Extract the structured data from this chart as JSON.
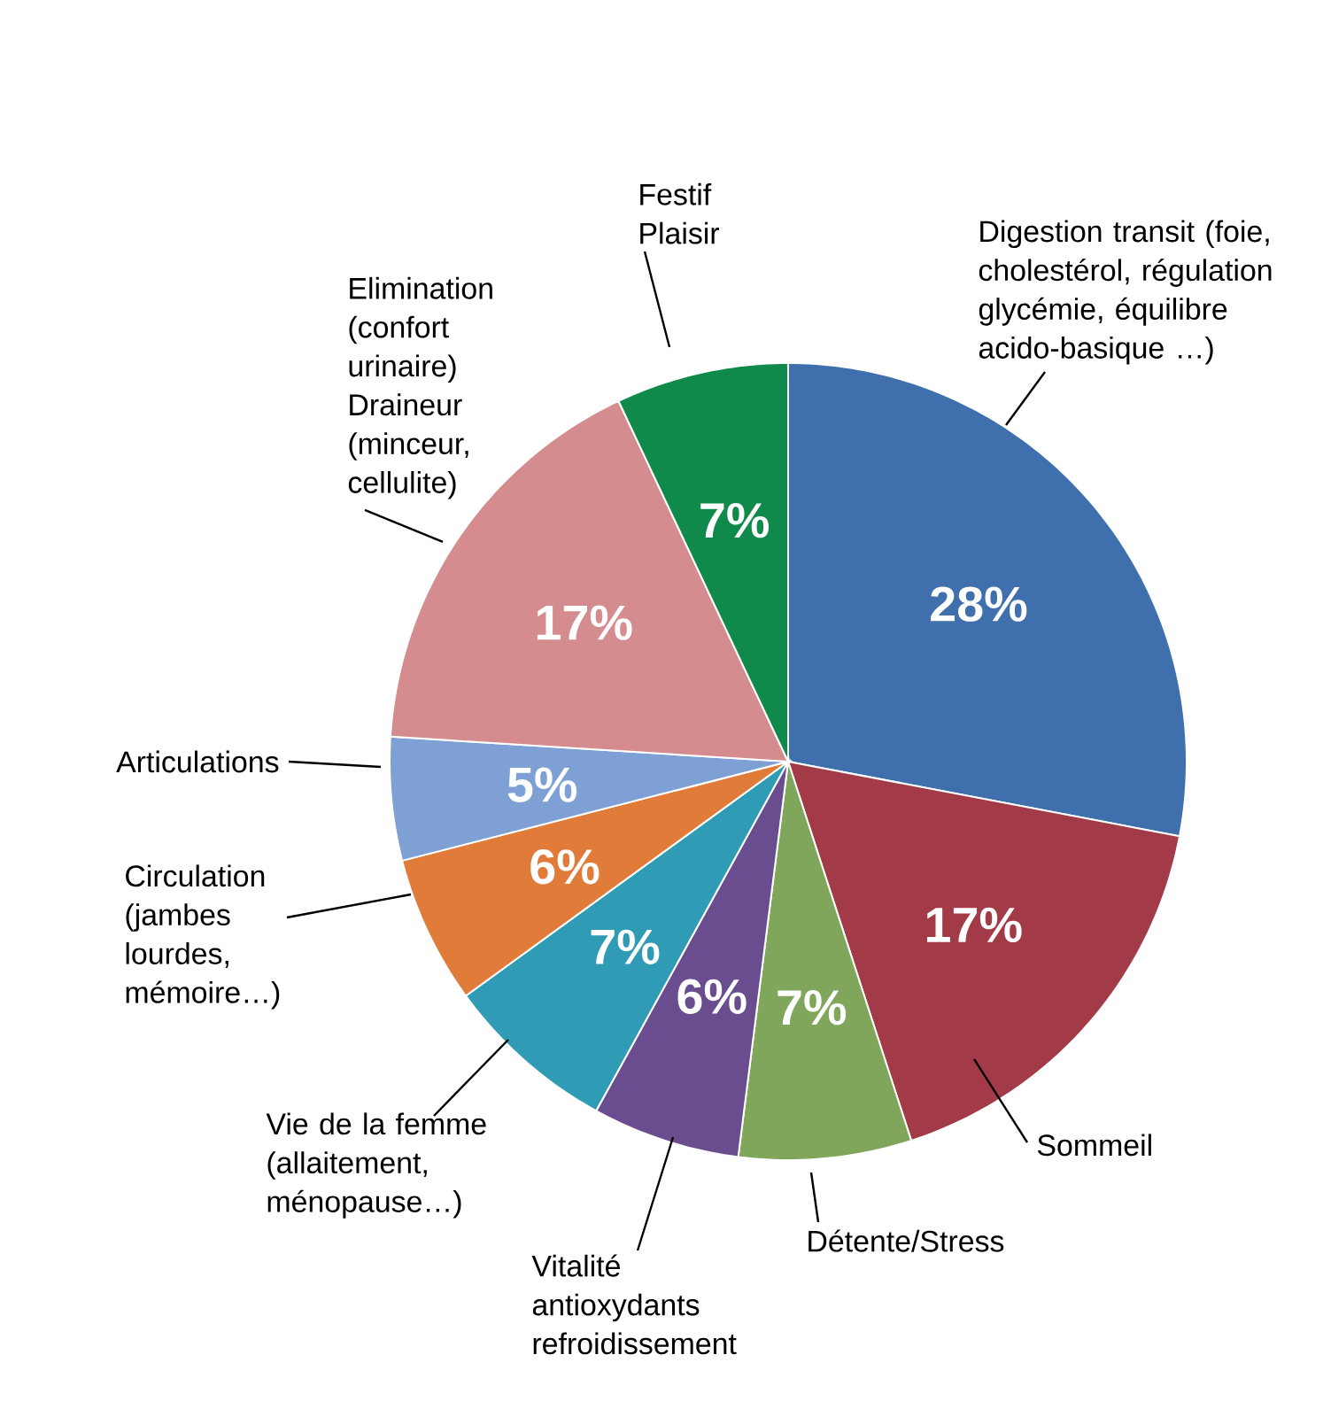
{
  "chart_data": {
    "type": "pie",
    "categories": [
      "Digestion transit (foie, cholestérol, régulation glycémie, équilibre acido-basique …)",
      "Sommeil",
      "Détente/Stress",
      "Vitalité antioxydants refroidissement",
      "Vie de la femme (allaitement, ménopause…)",
      "Circulation (jambes lourdes, mémoire…)",
      "Articulations",
      "Elimination (confort urinaire) Draineur (minceur, cellulite)",
      "Festif Plaisir"
    ],
    "values": [
      28,
      17,
      7,
      6,
      7,
      6,
      5,
      17,
      7
    ],
    "value_labels": [
      "28%",
      "17%",
      "7%",
      "6%",
      "7%",
      "6%",
      "5%",
      "17%",
      "7%"
    ],
    "colors": [
      "#3f6fad",
      "#a33a48",
      "#7fa65a",
      "#6a4d8e",
      "#2f9bb5",
      "#e07b39",
      "#7fa0d4",
      "#d48c8f",
      "#0f8a4a"
    ]
  }
}
